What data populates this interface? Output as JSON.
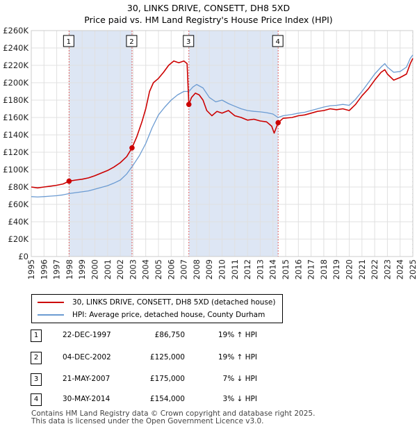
{
  "chart_data": {
    "type": "line",
    "title": "30, LINKS DRIVE, CONSETT, DH8 5XD",
    "subtitle": "Price paid vs. HM Land Registry's House Price Index (HPI)",
    "xlim": [
      1995,
      2025
    ],
    "ylim": [
      0,
      260000
    ],
    "y_ticks": [
      0,
      20000,
      40000,
      60000,
      80000,
      100000,
      120000,
      140000,
      160000,
      180000,
      200000,
      220000,
      240000,
      260000
    ],
    "y_tick_labels": [
      "£0",
      "£20K",
      "£40K",
      "£60K",
      "£80K",
      "£100K",
      "£120K",
      "£140K",
      "£160K",
      "£180K",
      "£200K",
      "£220K",
      "£240K",
      "£260K"
    ],
    "x_ticks": [
      1995,
      1996,
      1997,
      1998,
      1999,
      2000,
      2001,
      2002,
      2003,
      2004,
      2005,
      2006,
      2007,
      2008,
      2009,
      2010,
      2011,
      2012,
      2013,
      2014,
      2015,
      2016,
      2017,
      2018,
      2019,
      2020,
      2021,
      2022,
      2023,
      2024,
      2025
    ],
    "x_tick_labels": [
      "1995",
      "1996",
      "1997",
      "1998",
      "1999",
      "2000",
      "2001",
      "2002",
      "2003",
      "2004",
      "2005",
      "2006",
      "2007",
      "2008",
      "2009",
      "2010",
      "2011",
      "2012",
      "2013",
      "2014",
      "2015",
      "2016",
      "2017",
      "2018",
      "2019",
      "2020",
      "2021",
      "2022",
      "2023",
      "2024",
      "2025"
    ],
    "grid": true,
    "legend_position": "below",
    "series": [
      {
        "name": "30, LINKS DRIVE, CONSETT, DH8 5XD (detached house)",
        "color": "#cc0000",
        "points": [
          [
            1995.0,
            80000
          ],
          [
            1995.5,
            79000
          ],
          [
            1996.0,
            80000
          ],
          [
            1996.5,
            81000
          ],
          [
            1997.0,
            82000
          ],
          [
            1997.5,
            83500
          ],
          [
            1997.97,
            86750
          ],
          [
            1998.5,
            88000
          ],
          [
            1999.0,
            89000
          ],
          [
            1999.5,
            90500
          ],
          [
            2000.0,
            93000
          ],
          [
            2000.5,
            96000
          ],
          [
            2001.0,
            99000
          ],
          [
            2001.5,
            103000
          ],
          [
            2002.0,
            108000
          ],
          [
            2002.5,
            115000
          ],
          [
            2002.92,
            125000
          ],
          [
            2003.3,
            138000
          ],
          [
            2003.7,
            155000
          ],
          [
            2004.0,
            170000
          ],
          [
            2004.3,
            190000
          ],
          [
            2004.6,
            200000
          ],
          [
            2005.0,
            205000
          ],
          [
            2005.4,
            212000
          ],
          [
            2005.8,
            220000
          ],
          [
            2006.2,
            225000
          ],
          [
            2006.6,
            223000
          ],
          [
            2007.0,
            225000
          ],
          [
            2007.25,
            222000
          ],
          [
            2007.39,
            175000
          ],
          [
            2007.6,
            183000
          ],
          [
            2007.9,
            188000
          ],
          [
            2008.2,
            186000
          ],
          [
            2008.5,
            180000
          ],
          [
            2008.8,
            168000
          ],
          [
            2009.2,
            162000
          ],
          [
            2009.6,
            167000
          ],
          [
            2010.0,
            165000
          ],
          [
            2010.5,
            168000
          ],
          [
            2011.0,
            162000
          ],
          [
            2011.5,
            160000
          ],
          [
            2012.0,
            157000
          ],
          [
            2012.5,
            158000
          ],
          [
            2013.0,
            156000
          ],
          [
            2013.5,
            155000
          ],
          [
            2013.9,
            150000
          ],
          [
            2014.1,
            142000
          ],
          [
            2014.41,
            154000
          ],
          [
            2014.8,
            159000
          ],
          [
            2015.5,
            160000
          ],
          [
            2016.0,
            162000
          ],
          [
            2016.5,
            163000
          ],
          [
            2017.0,
            165000
          ],
          [
            2017.5,
            167000
          ],
          [
            2018.0,
            168000
          ],
          [
            2018.5,
            170000
          ],
          [
            2019.0,
            169000
          ],
          [
            2019.5,
            170000
          ],
          [
            2020.0,
            168000
          ],
          [
            2020.5,
            175000
          ],
          [
            2021.0,
            185000
          ],
          [
            2021.5,
            193000
          ],
          [
            2022.0,
            203000
          ],
          [
            2022.5,
            212000
          ],
          [
            2022.8,
            215000
          ],
          [
            2023.0,
            210000
          ],
          [
            2023.5,
            203000
          ],
          [
            2024.0,
            206000
          ],
          [
            2024.5,
            210000
          ],
          [
            2024.8,
            222000
          ],
          [
            2025.0,
            228000
          ]
        ]
      },
      {
        "name": "HPI: Average price, detached house, County Durham",
        "color": "#6b9bd2",
        "points": [
          [
            1995.0,
            69000
          ],
          [
            1995.5,
            68500
          ],
          [
            1996.0,
            69000
          ],
          [
            1996.5,
            69500
          ],
          [
            1997.0,
            70000
          ],
          [
            1997.5,
            71000
          ],
          [
            1998.0,
            72500
          ],
          [
            1998.5,
            73500
          ],
          [
            1999.0,
            74500
          ],
          [
            1999.5,
            75500
          ],
          [
            2000.0,
            77500
          ],
          [
            2000.5,
            79500
          ],
          [
            2001.0,
            81500
          ],
          [
            2001.5,
            84500
          ],
          [
            2002.0,
            88000
          ],
          [
            2002.5,
            95000
          ],
          [
            2003.0,
            105000
          ],
          [
            2003.5,
            116000
          ],
          [
            2004.0,
            130000
          ],
          [
            2004.5,
            148000
          ],
          [
            2005.0,
            163000
          ],
          [
            2005.5,
            172000
          ],
          [
            2006.0,
            180000
          ],
          [
            2006.5,
            186000
          ],
          [
            2007.0,
            190000
          ],
          [
            2007.4,
            190000
          ],
          [
            2007.7,
            195000
          ],
          [
            2008.0,
            198000
          ],
          [
            2008.5,
            194000
          ],
          [
            2009.0,
            183000
          ],
          [
            2009.5,
            178000
          ],
          [
            2010.0,
            180000
          ],
          [
            2010.5,
            176000
          ],
          [
            2011.0,
            173000
          ],
          [
            2011.5,
            170000
          ],
          [
            2012.0,
            168000
          ],
          [
            2012.5,
            167000
          ],
          [
            2013.0,
            166500
          ],
          [
            2013.5,
            165500
          ],
          [
            2014.0,
            164000
          ],
          [
            2014.4,
            160000
          ],
          [
            2014.8,
            162000
          ],
          [
            2015.5,
            163500
          ],
          [
            2016.0,
            165000
          ],
          [
            2016.5,
            166000
          ],
          [
            2017.0,
            168000
          ],
          [
            2017.5,
            170000
          ],
          [
            2018.0,
            172000
          ],
          [
            2018.5,
            173500
          ],
          [
            2019.0,
            174000
          ],
          [
            2019.5,
            175000
          ],
          [
            2020.0,
            174000
          ],
          [
            2020.5,
            181000
          ],
          [
            2021.0,
            190000
          ],
          [
            2021.5,
            200000
          ],
          [
            2022.0,
            210000
          ],
          [
            2022.5,
            218000
          ],
          [
            2022.8,
            222000
          ],
          [
            2023.0,
            218000
          ],
          [
            2023.5,
            212000
          ],
          [
            2024.0,
            213000
          ],
          [
            2024.5,
            218000
          ],
          [
            2024.8,
            228000
          ],
          [
            2025.0,
            232000
          ]
        ]
      }
    ],
    "sales": [
      {
        "label": "1",
        "x": 1997.97,
        "price": 86750,
        "date": "22-DEC-1997",
        "price_text": "£86,750",
        "hpi_text": "19% ↑ HPI"
      },
      {
        "label": "2",
        "x": 2002.92,
        "price": 125000,
        "date": "04-DEC-2002",
        "price_text": "£125,000",
        "hpi_text": "19% ↑ HPI"
      },
      {
        "label": "3",
        "x": 2007.39,
        "price": 175000,
        "date": "21-MAY-2007",
        "price_text": "£175,000",
        "hpi_text": "7% ↓ HPI"
      },
      {
        "label": "4",
        "x": 2014.41,
        "price": 154000,
        "date": "30-MAY-2014",
        "price_text": "£154,000",
        "hpi_text": "3% ↓ HPI"
      }
    ],
    "shaded_ranges": [
      [
        1997.97,
        2002.92
      ],
      [
        2007.39,
        2014.41
      ]
    ]
  },
  "legend": {
    "property_label": "30, LINKS DRIVE, CONSETT, DH8 5XD (detached house)",
    "hpi_label": "HPI: Average price, detached house, County Durham"
  },
  "footer": {
    "line1": "Contains HM Land Registry data © Crown copyright and database right 2025.",
    "line2": "This data is licensed under the Open Government Licence v3.0."
  },
  "colors": {
    "property": "#cc0000",
    "hpi": "#6b9bd2",
    "shade": "#dde6f4",
    "marker_line": "#e06060"
  }
}
